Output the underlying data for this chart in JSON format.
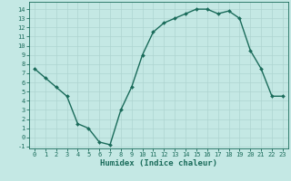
{
  "x": [
    0,
    1,
    2,
    3,
    4,
    5,
    6,
    7,
    8,
    9,
    10,
    11,
    12,
    13,
    14,
    15,
    16,
    17,
    18,
    19,
    20,
    21,
    22,
    23
  ],
  "y": [
    7.5,
    6.5,
    5.5,
    4.5,
    1.5,
    1.0,
    -0.5,
    -0.8,
    3.0,
    5.5,
    9.0,
    11.5,
    12.5,
    13.0,
    13.5,
    14.0,
    14.0,
    13.5,
    13.8,
    13.0,
    9.5,
    7.5,
    4.5,
    4.5
  ],
  "line_color": "#1a6b5a",
  "marker": "D",
  "marker_size": 2.0,
  "bg_color": "#c4e8e4",
  "grid_color": "#aed4d0",
  "xlabel": "Humidex (Indice chaleur)",
  "xlim": [
    -0.5,
    23.5
  ],
  "ylim": [
    -1.2,
    14.8
  ],
  "xticks": [
    0,
    1,
    2,
    3,
    4,
    5,
    6,
    7,
    8,
    9,
    10,
    11,
    12,
    13,
    14,
    15,
    16,
    17,
    18,
    19,
    20,
    21,
    22,
    23
  ],
  "yticks": [
    -1,
    0,
    1,
    2,
    3,
    4,
    5,
    6,
    7,
    8,
    9,
    10,
    11,
    12,
    13,
    14
  ],
  "ytick_labels": [
    "-1",
    "0",
    "1",
    "2",
    "3",
    "4",
    "5",
    "6",
    "7",
    "8",
    "9",
    "10",
    "11",
    "12",
    "13",
    "14"
  ],
  "tick_label_size": 5.0,
  "xlabel_size": 6.5,
  "line_width": 1.0
}
